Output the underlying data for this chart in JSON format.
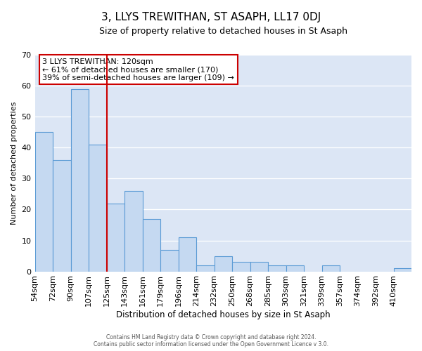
{
  "title": "3, LLYS TREWITHAN, ST ASAPH, LL17 0DJ",
  "subtitle": "Size of property relative to detached houses in St Asaph",
  "xlabel": "Distribution of detached houses by size in St Asaph",
  "ylabel": "Number of detached properties",
  "bin_labels": [
    "54sqm",
    "72sqm",
    "90sqm",
    "107sqm",
    "125sqm",
    "143sqm",
    "161sqm",
    "179sqm",
    "196sqm",
    "214sqm",
    "232sqm",
    "250sqm",
    "268sqm",
    "285sqm",
    "303sqm",
    "321sqm",
    "339sqm",
    "357sqm",
    "374sqm",
    "392sqm",
    "410sqm"
  ],
  "bar_heights": [
    45,
    36,
    59,
    41,
    22,
    26,
    17,
    7,
    11,
    2,
    5,
    3,
    3,
    2,
    2,
    0,
    2,
    0,
    0,
    0,
    1
  ],
  "bar_color": "#c5d9f1",
  "bar_edge_color": "#5b9bd5",
  "red_line_x": 4,
  "highlight_line_color": "#cc0000",
  "annotation_text": "3 LLYS TREWITHAN: 120sqm\n← 61% of detached houses are smaller (170)\n39% of semi-detached houses are larger (109) →",
  "annotation_box_color": "white",
  "annotation_box_edge_color": "#cc0000",
  "ylim": [
    0,
    70
  ],
  "yticks": [
    0,
    10,
    20,
    30,
    40,
    50,
    60,
    70
  ],
  "footer_text": "Contains HM Land Registry data © Crown copyright and database right 2024.\nContains public sector information licensed under the Open Government Licence v 3.0.",
  "bg_color": "#dce6f5"
}
